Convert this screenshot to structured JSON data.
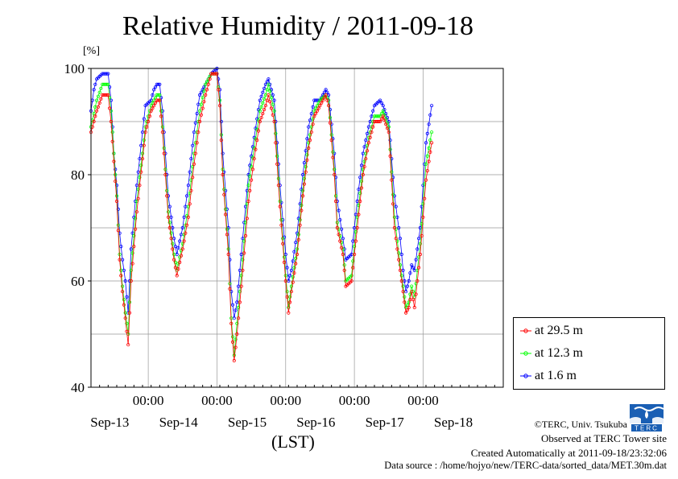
{
  "page": {
    "title": "Relative Humidity / 2011-09-18",
    "unit_label": "[%]",
    "x_axis_label": "(LST)",
    "credits": [
      "©TERC, Univ. Tsukuba",
      "Observed at TERC Tower site",
      "Created Automatically at 2011-09-18/23:32:06",
      "Data source : /home/hojyo/new/TERC-data/sorted_data/MET.30m.dat"
    ],
    "logo_text": "TERC"
  },
  "chart_data": {
    "type": "line",
    "title": "Relative Humidity / 2011-09-18",
    "ylabel": "[%]",
    "xlabel": "(LST)",
    "ylim": [
      40,
      100
    ],
    "yticks": [
      40,
      60,
      80,
      100
    ],
    "minor_y_gridlines": [
      50,
      70,
      90
    ],
    "xlim_hours": [
      0,
      144
    ],
    "x_tick_time_label": "00:00",
    "x_day_labels": [
      "Sep-13",
      "Sep-14",
      "Sep-15",
      "Sep-16",
      "Sep-17",
      "Sep-18"
    ],
    "grid": true,
    "legend_position": "bottom-right outside",
    "colors": {
      "at 29.5 m": "#ff0000",
      "at 12.3 m": "#00ff00",
      "at 1.6 m": "#0000ff"
    },
    "series": [
      {
        "name": "at 29.5 m",
        "color": "#ff0000",
        "points": [
          [
            0,
            88
          ],
          [
            2,
            92
          ],
          [
            4,
            95
          ],
          [
            6,
            95
          ],
          [
            7,
            90
          ],
          [
            9,
            75
          ],
          [
            10,
            64
          ],
          [
            11,
            58
          ],
          [
            12,
            53
          ],
          [
            13,
            48
          ],
          [
            14,
            60
          ],
          [
            16,
            73
          ],
          [
            18,
            83
          ],
          [
            19,
            88
          ],
          [
            21,
            92
          ],
          [
            23,
            94
          ],
          [
            24,
            94
          ],
          [
            25,
            88
          ],
          [
            27,
            72
          ],
          [
            29,
            64
          ],
          [
            30,
            61
          ],
          [
            32,
            66
          ],
          [
            34,
            72
          ],
          [
            36,
            82
          ],
          [
            38,
            90
          ],
          [
            40,
            95
          ],
          [
            42,
            99
          ],
          [
            44,
            99
          ],
          [
            45,
            93
          ],
          [
            46,
            80
          ],
          [
            48,
            65
          ],
          [
            49,
            52
          ],
          [
            50,
            45
          ],
          [
            51,
            50
          ],
          [
            53,
            62
          ],
          [
            55,
            75
          ],
          [
            57,
            83
          ],
          [
            59,
            90
          ],
          [
            61,
            93
          ],
          [
            62,
            95
          ],
          [
            64,
            90
          ],
          [
            66,
            74
          ],
          [
            68,
            60
          ],
          [
            69,
            54
          ],
          [
            70,
            58
          ],
          [
            72,
            65
          ],
          [
            74,
            76
          ],
          [
            76,
            85
          ],
          [
            78,
            91
          ],
          [
            80,
            93
          ],
          [
            82,
            95
          ],
          [
            83,
            93
          ],
          [
            85,
            80
          ],
          [
            86,
            70
          ],
          [
            88,
            65
          ],
          [
            89,
            59
          ],
          [
            91,
            60
          ],
          [
            93,
            70
          ],
          [
            95,
            80
          ],
          [
            97,
            86
          ],
          [
            99,
            90
          ],
          [
            101,
            90
          ],
          [
            102,
            91
          ],
          [
            104,
            88
          ],
          [
            106,
            70
          ],
          [
            108,
            62
          ],
          [
            109,
            58
          ],
          [
            110,
            54
          ],
          [
            111,
            55
          ],
          [
            112,
            58
          ],
          [
            113,
            55
          ],
          [
            115,
            65
          ],
          [
            117,
            79
          ],
          [
            119,
            86
          ]
        ]
      },
      {
        "name": "at 12.3 m",
        "color": "#00ff00",
        "points": [
          [
            0,
            89
          ],
          [
            2,
            94
          ],
          [
            4,
            97
          ],
          [
            6,
            97
          ],
          [
            7,
            92
          ],
          [
            9,
            76
          ],
          [
            10,
            65
          ],
          [
            11,
            59
          ],
          [
            12,
            54
          ],
          [
            13,
            50
          ],
          [
            14,
            62
          ],
          [
            16,
            75
          ],
          [
            18,
            84
          ],
          [
            19,
            89
          ],
          [
            21,
            93
          ],
          [
            23,
            95
          ],
          [
            24,
            95
          ],
          [
            25,
            89
          ],
          [
            27,
            73
          ],
          [
            29,
            65
          ],
          [
            30,
            62
          ],
          [
            32,
            67
          ],
          [
            34,
            74
          ],
          [
            36,
            84
          ],
          [
            38,
            92
          ],
          [
            40,
            97
          ],
          [
            42,
            99
          ],
          [
            44,
            99
          ],
          [
            45,
            94
          ],
          [
            46,
            81
          ],
          [
            48,
            66
          ],
          [
            49,
            53
          ],
          [
            50,
            46
          ],
          [
            51,
            52
          ],
          [
            53,
            64
          ],
          [
            55,
            78
          ],
          [
            57,
            85
          ],
          [
            59,
            92
          ],
          [
            61,
            95
          ],
          [
            62,
            97
          ],
          [
            64,
            92
          ],
          [
            66,
            75
          ],
          [
            68,
            61
          ],
          [
            69,
            55
          ],
          [
            70,
            59
          ],
          [
            72,
            66
          ],
          [
            74,
            77
          ],
          [
            76,
            86
          ],
          [
            78,
            92
          ],
          [
            80,
            94
          ],
          [
            82,
            95
          ],
          [
            83,
            94
          ],
          [
            85,
            81
          ],
          [
            86,
            71
          ],
          [
            88,
            66
          ],
          [
            89,
            60
          ],
          [
            91,
            61
          ],
          [
            93,
            72
          ],
          [
            95,
            81
          ],
          [
            97,
            87
          ],
          [
            99,
            91
          ],
          [
            101,
            91
          ],
          [
            102,
            92
          ],
          [
            104,
            89
          ],
          [
            106,
            72
          ],
          [
            108,
            63
          ],
          [
            109,
            59
          ],
          [
            110,
            55
          ],
          [
            111,
            56
          ],
          [
            112,
            59
          ],
          [
            113,
            57
          ],
          [
            115,
            67
          ],
          [
            117,
            82
          ],
          [
            119,
            88
          ]
        ]
      },
      {
        "name": "at 1.6 m",
        "color": "#0000ff",
        "points": [
          [
            0,
            92
          ],
          [
            1,
            96
          ],
          [
            2,
            98
          ],
          [
            4,
            99
          ],
          [
            6,
            99
          ],
          [
            7,
            94
          ],
          [
            8,
            84
          ],
          [
            9,
            78
          ],
          [
            10,
            69
          ],
          [
            11,
            64
          ],
          [
            12,
            60
          ],
          [
            13,
            54
          ],
          [
            14,
            66
          ],
          [
            16,
            78
          ],
          [
            18,
            88
          ],
          [
            19,
            93
          ],
          [
            21,
            94
          ],
          [
            22,
            96
          ],
          [
            23,
            97
          ],
          [
            24,
            97
          ],
          [
            25,
            92
          ],
          [
            27,
            76
          ],
          [
            29,
            68
          ],
          [
            30,
            65
          ],
          [
            32,
            70
          ],
          [
            34,
            78
          ],
          [
            36,
            88
          ],
          [
            38,
            95
          ],
          [
            40,
            97
          ],
          [
            42,
            99
          ],
          [
            44,
            100
          ],
          [
            45,
            96
          ],
          [
            46,
            84
          ],
          [
            48,
            70
          ],
          [
            49,
            58
          ],
          [
            50,
            53
          ],
          [
            51,
            56
          ],
          [
            53,
            68
          ],
          [
            55,
            80
          ],
          [
            57,
            87
          ],
          [
            59,
            94
          ],
          [
            61,
            97
          ],
          [
            62,
            98
          ],
          [
            64,
            94
          ],
          [
            66,
            78
          ],
          [
            68,
            65
          ],
          [
            69,
            60
          ],
          [
            70,
            62
          ],
          [
            72,
            69
          ],
          [
            74,
            80
          ],
          [
            76,
            89
          ],
          [
            78,
            94
          ],
          [
            80,
            94
          ],
          [
            82,
            96
          ],
          [
            83,
            95
          ],
          [
            85,
            84
          ],
          [
            86,
            75
          ],
          [
            88,
            68
          ],
          [
            89,
            64
          ],
          [
            91,
            65
          ],
          [
            93,
            75
          ],
          [
            95,
            84
          ],
          [
            97,
            89
          ],
          [
            99,
            93
          ],
          [
            101,
            94
          ],
          [
            102,
            93
          ],
          [
            104,
            90
          ],
          [
            106,
            76
          ],
          [
            108,
            68
          ],
          [
            109,
            62
          ],
          [
            110,
            58
          ],
          [
            111,
            60
          ],
          [
            112,
            63
          ],
          [
            113,
            62
          ],
          [
            115,
            70
          ],
          [
            117,
            86
          ],
          [
            119,
            93
          ]
        ]
      }
    ]
  }
}
